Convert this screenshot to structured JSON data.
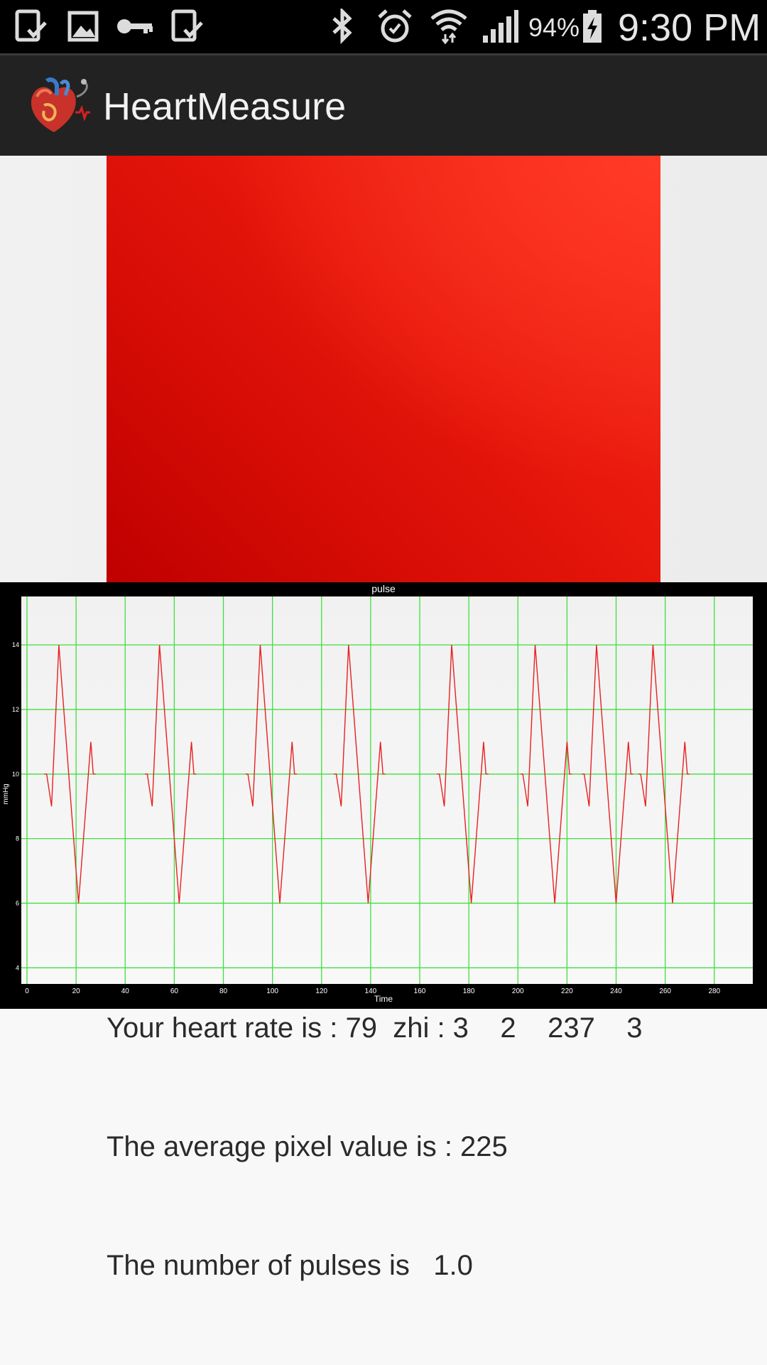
{
  "status_bar": {
    "battery_percent": "94%",
    "time": "9:30 PM",
    "icons": [
      "download-complete-icon",
      "image-icon",
      "vpn-key-icon",
      "download-complete-icon",
      "bluetooth-icon",
      "alarm-icon",
      "wifi-icon",
      "signal-icon",
      "battery-charging-icon"
    ]
  },
  "action_bar": {
    "title": "HeartMeasure",
    "logo_icon": "heart-stethoscope-icon"
  },
  "camera": {
    "preview_colors": [
      "#bf0000",
      "#f62a18"
    ]
  },
  "chart_data": {
    "type": "line",
    "title": "pulse",
    "xlabel": "Time",
    "ylabel": "mmHg",
    "xlim": [
      0,
      298
    ],
    "ylim": [
      3.5,
      15.5
    ],
    "x_ticks": [
      0,
      20,
      40,
      60,
      80,
      100,
      120,
      140,
      160,
      180,
      200,
      220,
      240,
      260,
      280
    ],
    "y_ticks": [
      4,
      6,
      8,
      10,
      12,
      14
    ],
    "grid": true,
    "series": [
      {
        "color": "#e82020",
        "segments": [
          {
            "x": [
              7,
              8,
              10,
              13,
              21,
              26,
              27,
              28
            ],
            "y": [
              10,
              10,
              9,
              14,
              6,
              11,
              10,
              10
            ]
          },
          {
            "x": [
              48,
              49,
              51,
              54,
              62,
              67,
              68,
              69
            ],
            "y": [
              10,
              10,
              9,
              14,
              6,
              11,
              10,
              10
            ]
          },
          {
            "x": [
              89,
              90,
              92,
              95,
              103,
              108,
              109,
              110
            ],
            "y": [
              10,
              10,
              9,
              14,
              6,
              11,
              10,
              10
            ]
          },
          {
            "x": [
              125,
              126,
              128,
              131,
              139,
              144,
              145,
              146
            ],
            "y": [
              10,
              10,
              9,
              14,
              6,
              11,
              10,
              10
            ]
          },
          {
            "x": [
              167,
              168,
              170,
              173,
              181,
              186,
              187,
              188
            ],
            "y": [
              10,
              10,
              9,
              14,
              6,
              11,
              10,
              10
            ]
          },
          {
            "x": [
              201,
              202,
              204,
              207,
              215,
              220,
              221,
              222
            ],
            "y": [
              10,
              10,
              9,
              14,
              6,
              11,
              10,
              10
            ]
          },
          {
            "x": [
              226,
              227,
              229,
              232,
              240,
              245,
              246,
              247
            ],
            "y": [
              10,
              10,
              9,
              14,
              6,
              11,
              10,
              10
            ]
          },
          {
            "x": [
              249,
              250,
              252,
              255,
              263,
              268,
              269,
              270
            ],
            "y": [
              10,
              10,
              9,
              14,
              6,
              11,
              10,
              10
            ]
          }
        ]
      }
    ]
  },
  "info": {
    "heart_rate_line": "Your heart rate is : 79  zhi : 3    2    237    3",
    "avg_pixel_line": "The average pixel value is : 225",
    "pulses_line": "The number of pulses is   1.0"
  }
}
